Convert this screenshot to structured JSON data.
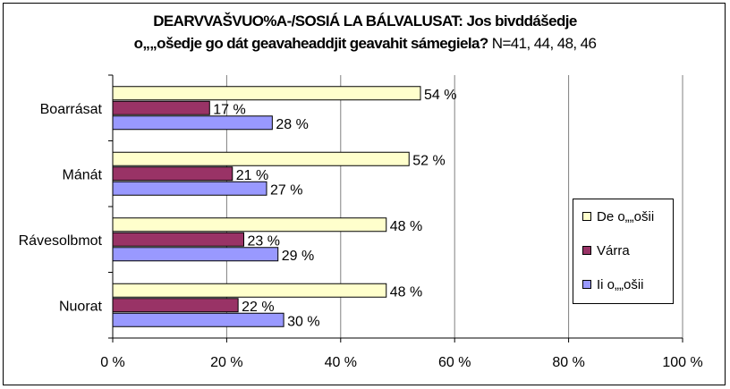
{
  "title": {
    "line1": "DEARVVAŠVUO%A-/SOSIÁ LA BÁLVALUSAT:  Jos bivddášedje",
    "line2_bold": "o„„ošedje go dát geavaheaddjit geavahit sámegiela?",
    "line2_n": " N=41, 44, 48, 46"
  },
  "colors": {
    "series1": "#ffffcc",
    "series2": "#993366",
    "series3": "#9999ff",
    "grid": "#808080"
  },
  "chart_data": {
    "type": "bar",
    "orientation": "horizontal",
    "categories": [
      "Boarrásat",
      "Mánát",
      "Rávesolbmot",
      "Nuorat"
    ],
    "series": [
      {
        "name": "De o„„ošii",
        "values": [
          54,
          52,
          48,
          48
        ],
        "labels": [
          "54 %",
          "52 %",
          "48 %",
          "48 %"
        ]
      },
      {
        "name": "Várra",
        "values": [
          17,
          21,
          23,
          22
        ],
        "labels": [
          "17 %",
          "21 %",
          "23 %",
          "22 %"
        ]
      },
      {
        "name": "Ii o„„ošii",
        "values": [
          28,
          27,
          29,
          30
        ],
        "labels": [
          "28 %",
          "27 %",
          "29 %",
          "30 %"
        ]
      }
    ],
    "xlim": [
      0,
      100
    ],
    "xticks": [
      "0 %",
      "20 %",
      "40 %",
      "60 %",
      "80 %",
      "100 %"
    ],
    "grid": true,
    "legend": "right"
  }
}
